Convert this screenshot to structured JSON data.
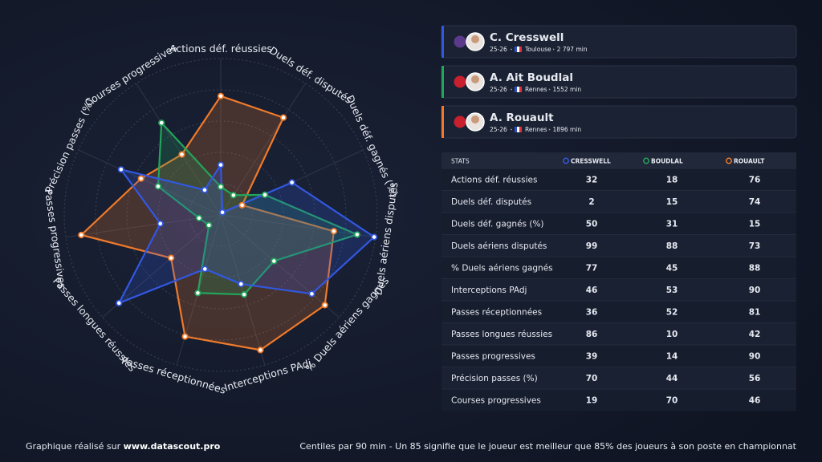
{
  "chart_data": {
    "type": "radar",
    "categories": [
      "Actions déf. réussies",
      "Duels déf. disputés",
      "Duels déf. gagnés (%)",
      "Duels aériens disputés",
      "% Duels aériens gagnés",
      "Interceptions PAdj",
      "Passes réceptionnées",
      "Passes longues réussies",
      "Passes progressives",
      "Précision passes (%)",
      "Courses progressives"
    ],
    "series": [
      {
        "name": "CRESSWELL",
        "color": "#3258e0",
        "values": [
          32,
          2,
          50,
          99,
          77,
          46,
          36,
          86,
          39,
          70,
          19
        ]
      },
      {
        "name": "BOUDLAL",
        "color": "#23a55a",
        "values": [
          18,
          15,
          31,
          88,
          45,
          53,
          52,
          10,
          14,
          44,
          70
        ]
      },
      {
        "name": "ROUAULT",
        "color": "#f07a2a",
        "values": [
          76,
          74,
          15,
          73,
          88,
          90,
          81,
          42,
          90,
          56,
          46
        ]
      }
    ],
    "ylim": [
      0,
      100
    ],
    "yticks": [
      20,
      40,
      60,
      80,
      100
    ],
    "grid": true
  },
  "players": [
    {
      "name": "C. Cresswell",
      "season": "25-26",
      "club": "Toulouse",
      "minutes": "2 797 min"
    },
    {
      "name": "A. Ait Boudlal",
      "season": "25-26",
      "club": "Rennes",
      "minutes": "1552 min"
    },
    {
      "name": "A. Rouault",
      "season": "25-26",
      "club": "Rennes",
      "minutes": "1896 min"
    }
  ],
  "table": {
    "header": "STATS"
  },
  "footer": {
    "prefix": "Graphique réalisé sur ",
    "site": "www.datascout.pro",
    "note": "Centiles par 90 min - Un 85 signifie que le joueur est meilleur que 85% des joueurs à son poste en championnat"
  }
}
